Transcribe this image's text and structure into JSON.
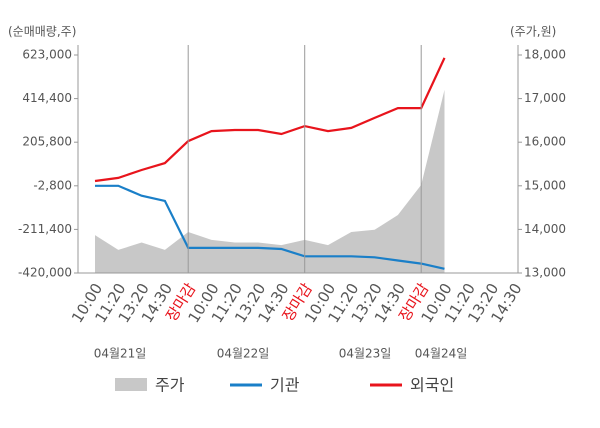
{
  "chart_data": {
    "type": "line",
    "y_label": "(순매매량,주)",
    "y2_label": "(주가,원)",
    "categories": [
      "10:00",
      "11:20",
      "13:20",
      "14:30",
      "장마감",
      "10:00",
      "11:20",
      "13:20",
      "14:30",
      "장마감",
      "10:00",
      "11:20",
      "13:20",
      "14:30",
      "장마감",
      "10:00",
      "11:20",
      "13:20",
      "14:30"
    ],
    "category_colors": [
      "#555555",
      "#555555",
      "#555555",
      "#555555",
      "#e8141c",
      "#555555",
      "#555555",
      "#555555",
      "#555555",
      "#e8141c",
      "#555555",
      "#555555",
      "#555555",
      "#555555",
      "#e8141c",
      "#555555",
      "#555555",
      "#555555",
      "#555555"
    ],
    "dates": [
      "04월21일",
      "04월22일",
      "04월23일",
      "04월24일"
    ],
    "series": [
      {
        "name": "주가",
        "type": "area",
        "axis": "y2",
        "color": "#c8c8c8",
        "values": [
          13870,
          13530,
          13700,
          13530,
          13940,
          13760,
          13700,
          13700,
          13640,
          13760,
          13640,
          13940,
          13990,
          14330,
          15020,
          17200,
          null,
          null,
          null
        ]
      },
      {
        "name": "기관",
        "color": "#1a7fc8",
        "values": [
          -2800,
          -2800,
          -50000,
          -75000,
          -300000,
          -300000,
          -300000,
          -300000,
          -305000,
          -340000,
          -340000,
          -340000,
          -345000,
          -360000,
          -375000,
          -400000,
          null,
          null,
          null
        ]
      },
      {
        "name": "외국인",
        "color": "#e8141c",
        "values": [
          20000,
          35000,
          73000,
          106000,
          211000,
          259000,
          264000,
          264000,
          245000,
          283000,
          259000,
          274000,
          322000,
          369000,
          369000,
          609000,
          null,
          null,
          null
        ]
      }
    ],
    "ylim": [
      -420000,
      623000
    ],
    "yticks": [
      {
        "value": -420000,
        "label": "-420,000"
      },
      {
        "value": -211400,
        "label": "-211,400"
      },
      {
        "value": -2800,
        "label": "-2,800"
      },
      {
        "value": 205800,
        "label": "205,800"
      },
      {
        "value": 414400,
        "label": "414,400"
      },
      {
        "value": 623000,
        "label": "623,000"
      }
    ],
    "y2lim": [
      13000,
      18000
    ],
    "y2ticks": [
      {
        "value": 13000,
        "label": "13,000"
      },
      {
        "value": 14000,
        "label": "14,000"
      },
      {
        "value": 15000,
        "label": "15,000"
      },
      {
        "value": 16000,
        "label": "16,000"
      },
      {
        "value": 17000,
        "label": "17,000"
      },
      {
        "value": 18000,
        "label": "18,000"
      }
    ],
    "grid": false
  }
}
